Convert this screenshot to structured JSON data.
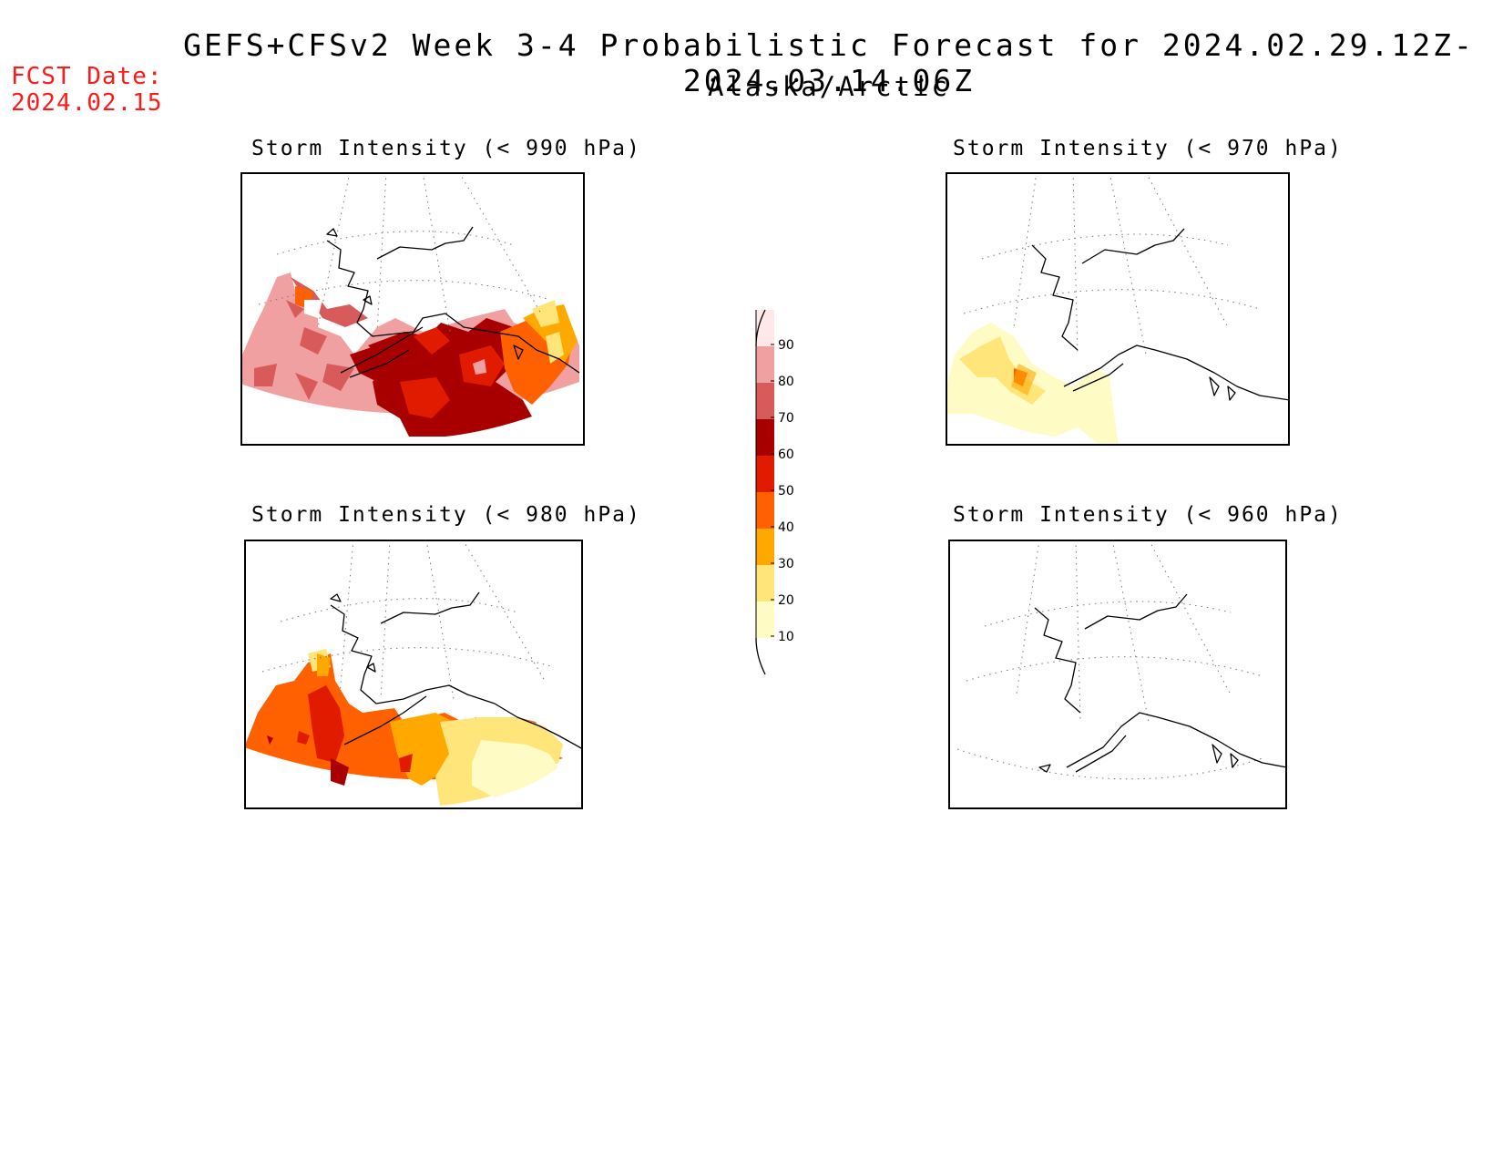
{
  "header": {
    "title": "GEFS+CFSv2 Week 3-4 Probabilistic Forecast for 2024.02.29.12Z-2024.03.14.06Z",
    "subtitle": "Alaska/Arctic",
    "fcst_label": "FCST Date:",
    "fcst_date": "2024.02.15"
  },
  "panels": [
    {
      "id": "p990",
      "title": "Storm Intensity (< 990 hPa)"
    },
    {
      "id": "p970",
      "title": "Storm Intensity (< 970 hPa)"
    },
    {
      "id": "p980",
      "title": "Storm Intensity (< 980 hPa)"
    },
    {
      "id": "p960",
      "title": "Storm Intensity (< 960 hPa)"
    }
  ],
  "colorbar": {
    "levels": [
      "10",
      "20",
      "30",
      "40",
      "50",
      "60",
      "70",
      "80",
      "90"
    ],
    "colors": [
      "#fffbc4",
      "#ffe57a",
      "#ffa800",
      "#ff6000",
      "#e01b00",
      "#a80000",
      "#d95a5a",
      "#f0a0a0",
      "#ffe8e8"
    ]
  }
}
